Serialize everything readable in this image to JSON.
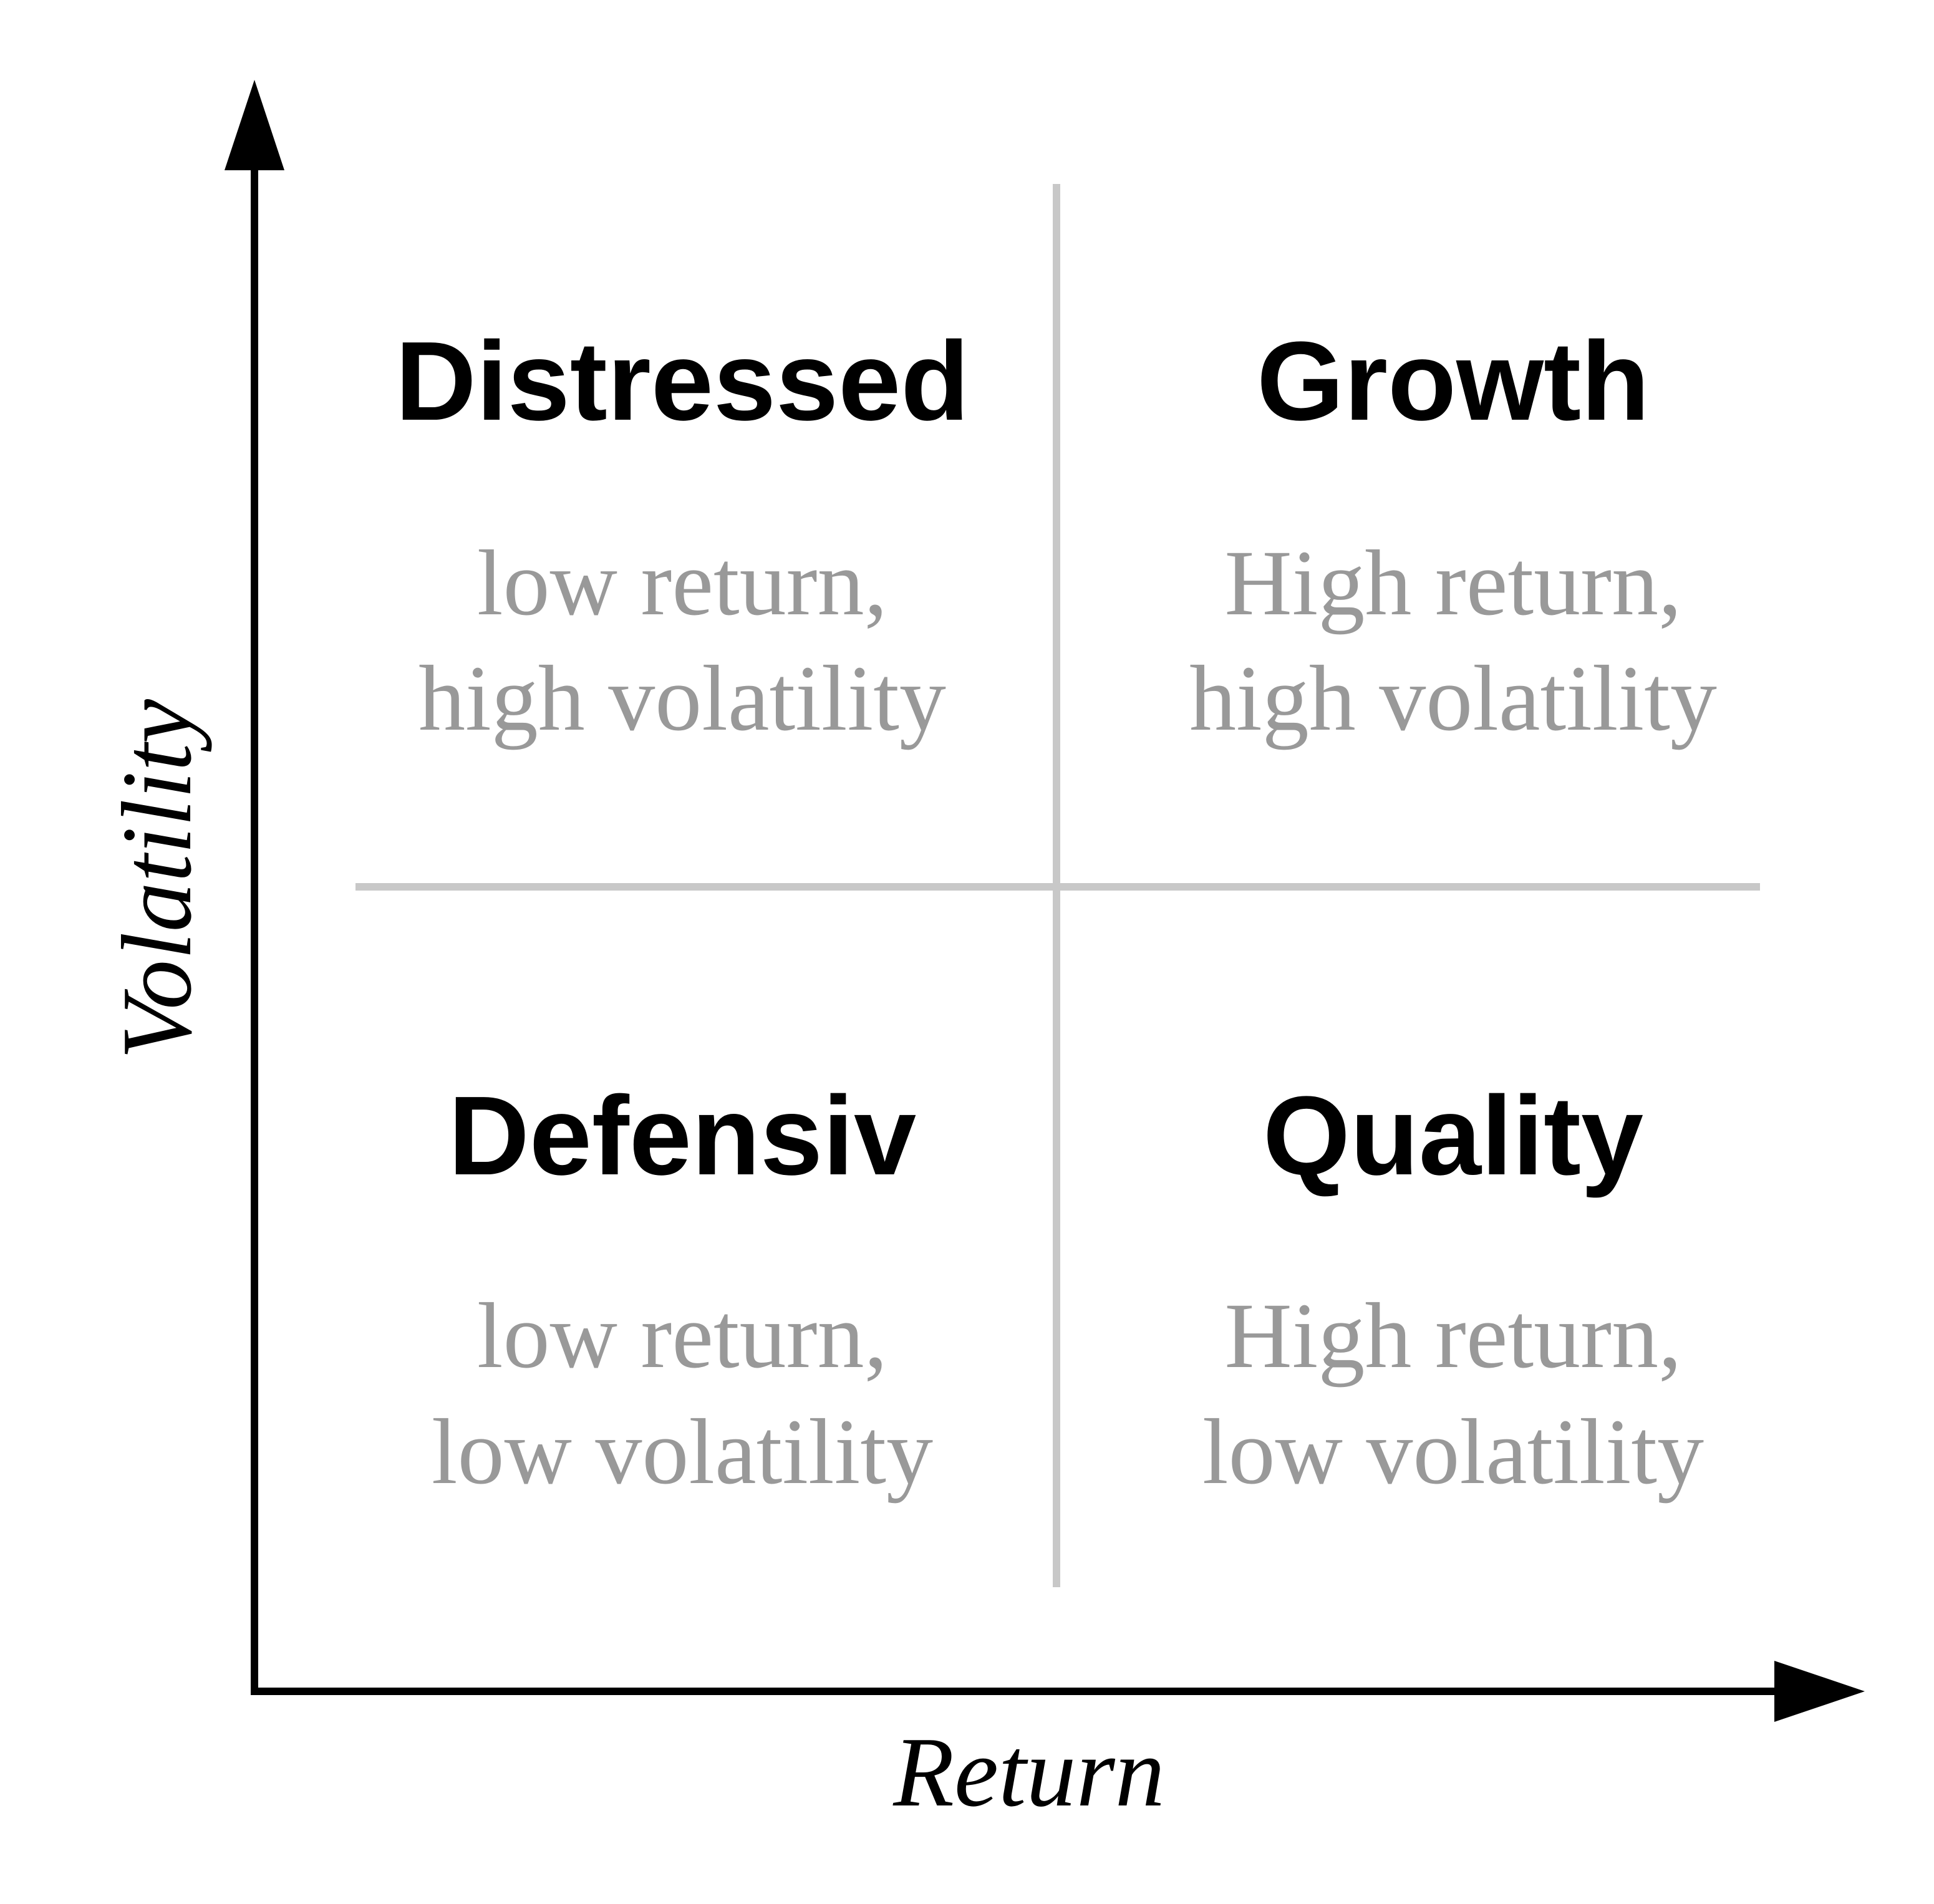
{
  "colors": {
    "axis": "#000000",
    "divider": "#c8c8c8",
    "title": "#000000",
    "description": "#999999"
  },
  "axes": {
    "x_label": "Return",
    "y_label": "Volatility"
  },
  "quadrants": {
    "top_left": {
      "title": "Distressed",
      "line1": "low return,",
      "line2": "high volatility"
    },
    "top_right": {
      "title": "Growth",
      "line1": "High return,",
      "line2": "high volatility"
    },
    "bottom_left": {
      "title": "Defensiv",
      "line1": "low return,",
      "line2": "low volatility"
    },
    "bottom_right": {
      "title": "Quality",
      "line1": "High return,",
      "line2": "low volatility"
    }
  }
}
